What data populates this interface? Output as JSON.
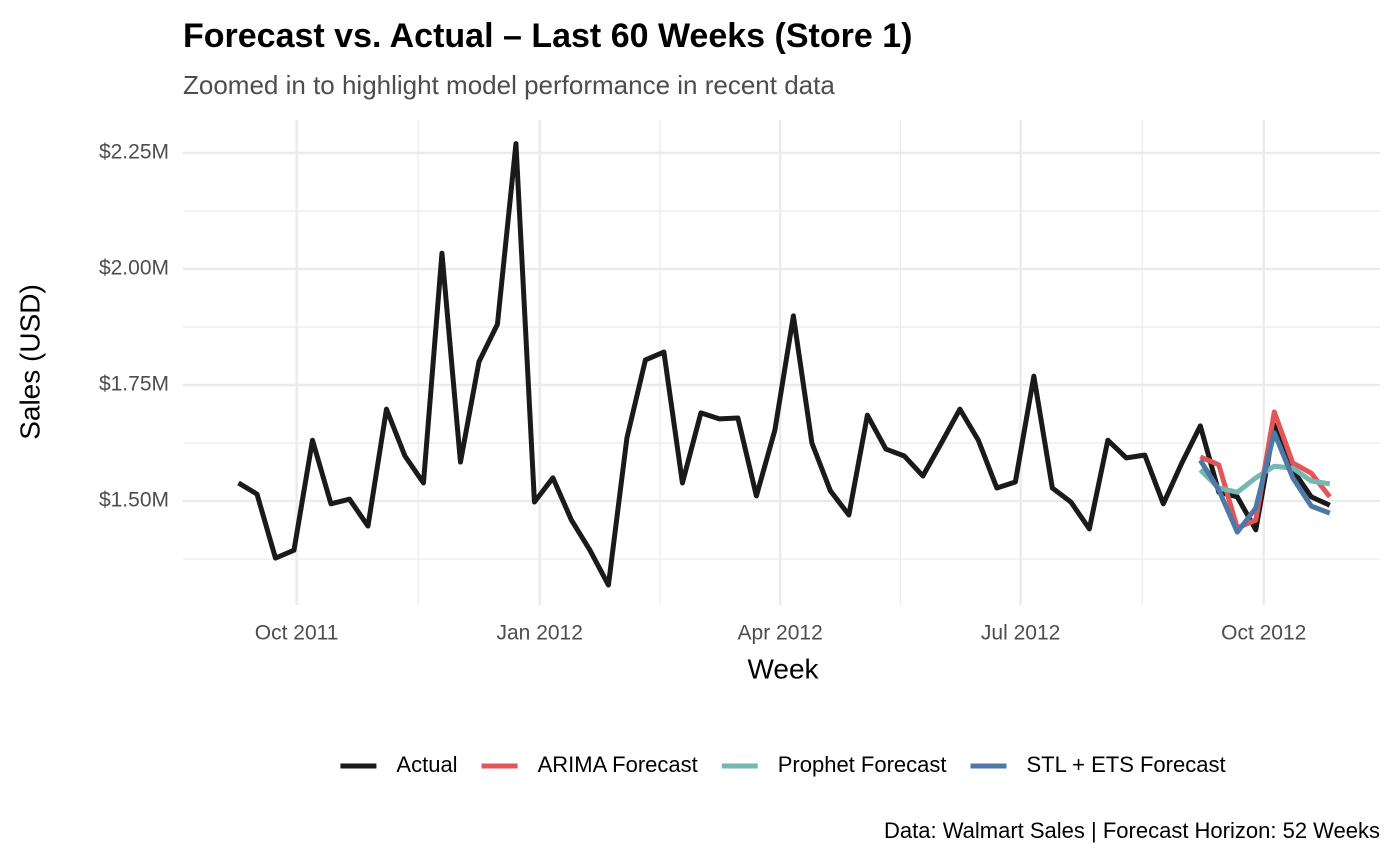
{
  "chart_data": {
    "type": "line",
    "title": "Forecast vs. Actual – Last 60 Weeks (Store 1)",
    "subtitle": "Zoomed in to highlight model performance in recent data",
    "x_label": "Week",
    "y_label": "Sales (USD)",
    "caption": "Data: Walmart Sales | Forecast Horizon: 52 Weeks",
    "x": [
      "2011-09-09",
      "2011-09-16",
      "2011-09-23",
      "2011-09-30",
      "2011-10-07",
      "2011-10-14",
      "2011-10-21",
      "2011-10-28",
      "2011-11-04",
      "2011-11-11",
      "2011-11-18",
      "2011-11-25",
      "2011-12-02",
      "2011-12-09",
      "2011-12-16",
      "2011-12-23",
      "2011-12-30",
      "2012-01-06",
      "2012-01-13",
      "2012-01-20",
      "2012-01-27",
      "2012-02-03",
      "2012-02-10",
      "2012-02-17",
      "2012-02-24",
      "2012-03-02",
      "2012-03-09",
      "2012-03-16",
      "2012-03-23",
      "2012-03-30",
      "2012-04-06",
      "2012-04-13",
      "2012-04-20",
      "2012-04-27",
      "2012-05-04",
      "2012-05-11",
      "2012-05-18",
      "2012-05-25",
      "2012-06-01",
      "2012-06-08",
      "2012-06-15",
      "2012-06-22",
      "2012-06-29",
      "2012-07-06",
      "2012-07-13",
      "2012-07-20",
      "2012-07-27",
      "2012-08-03",
      "2012-08-10",
      "2012-08-17",
      "2012-08-24",
      "2012-08-31",
      "2012-09-07",
      "2012-09-14",
      "2012-09-21",
      "2012-09-28",
      "2012-10-05",
      "2012-10-12",
      "2012-10-19",
      "2012-10-26"
    ],
    "series": [
      {
        "name": "Actual",
        "color": "#1a1a1a",
        "values": [
          1539000,
          1515000,
          1377000,
          1394000,
          1631000,
          1494000,
          1504000,
          1446000,
          1698000,
          1597000,
          1539000,
          2034000,
          1584000,
          1800000,
          1881000,
          2270000,
          1498000,
          1550000,
          1459000,
          1394000,
          1319000,
          1636000,
          1804000,
          1821000,
          1539000,
          1690000,
          1677000,
          1679000,
          1511000,
          1653000,
          1899000,
          1625000,
          1522000,
          1470000,
          1685000,
          1612000,
          1597000,
          1554000,
          1625000,
          1698000,
          1631000,
          1528000,
          1541000,
          1769000,
          1528000,
          1498000,
          1440000,
          1631000,
          1593000,
          1599000,
          1494000,
          1582000,
          1662000,
          1519000,
          1509000,
          1438000,
          1664000,
          1567000,
          1509000,
          1491000
        ]
      },
      {
        "name": "ARIMA Forecast",
        "color": "#e15759",
        "values": [
          null,
          null,
          null,
          null,
          null,
          null,
          null,
          null,
          null,
          null,
          null,
          null,
          null,
          null,
          null,
          null,
          null,
          null,
          null,
          null,
          null,
          null,
          null,
          null,
          null,
          null,
          null,
          null,
          null,
          null,
          null,
          null,
          null,
          null,
          null,
          null,
          null,
          null,
          null,
          null,
          null,
          null,
          null,
          null,
          null,
          null,
          null,
          null,
          null,
          null,
          null,
          null,
          1595000,
          1578000,
          1442000,
          1459000,
          1692000,
          1582000,
          1560000,
          1509000
        ]
      },
      {
        "name": "Prophet Forecast",
        "color": "#76b7b2",
        "values": [
          null,
          null,
          null,
          null,
          null,
          null,
          null,
          null,
          null,
          null,
          null,
          null,
          null,
          null,
          null,
          null,
          null,
          null,
          null,
          null,
          null,
          null,
          null,
          null,
          null,
          null,
          null,
          null,
          null,
          null,
          null,
          null,
          null,
          null,
          null,
          null,
          null,
          null,
          null,
          null,
          null,
          null,
          null,
          null,
          null,
          null,
          null,
          null,
          null,
          null,
          null,
          null,
          1567000,
          1528000,
          1519000,
          1550000,
          1575000,
          1571000,
          1543000,
          1537000
        ]
      },
      {
        "name": "STL + ETS Forecast",
        "color": "#4e79a7",
        "values": [
          null,
          null,
          null,
          null,
          null,
          null,
          null,
          null,
          null,
          null,
          null,
          null,
          null,
          null,
          null,
          null,
          null,
          null,
          null,
          null,
          null,
          null,
          null,
          null,
          null,
          null,
          null,
          null,
          null,
          null,
          null,
          null,
          null,
          null,
          null,
          null,
          null,
          null,
          null,
          null,
          null,
          null,
          null,
          null,
          null,
          null,
          null,
          null,
          null,
          null,
          null,
          null,
          1588000,
          1524000,
          1433000,
          1485000,
          1647000,
          1550000,
          1489000,
          1474000
        ]
      }
    ],
    "xlim": [
      "2011-08-19",
      "2012-11-14"
    ],
    "xticks": [
      {
        "value": "2011-10-01",
        "label": "Oct 2011"
      },
      {
        "value": "2012-01-01",
        "label": "Jan 2012"
      },
      {
        "value": "2012-04-01",
        "label": "Apr 2012"
      },
      {
        "value": "2012-07-01",
        "label": "Jul 2012"
      },
      {
        "value": "2012-10-01",
        "label": "Oct 2012"
      }
    ],
    "ylim": [
      1276000,
      2321000
    ],
    "yticks": [
      {
        "value": 1500000,
        "label": "$1.50M"
      },
      {
        "value": 1750000,
        "label": "$1.75M"
      },
      {
        "value": 2000000,
        "label": "$2.00M"
      },
      {
        "value": 2250000,
        "label": "$2.25M"
      }
    ],
    "grid": true,
    "legend": "bottom"
  }
}
